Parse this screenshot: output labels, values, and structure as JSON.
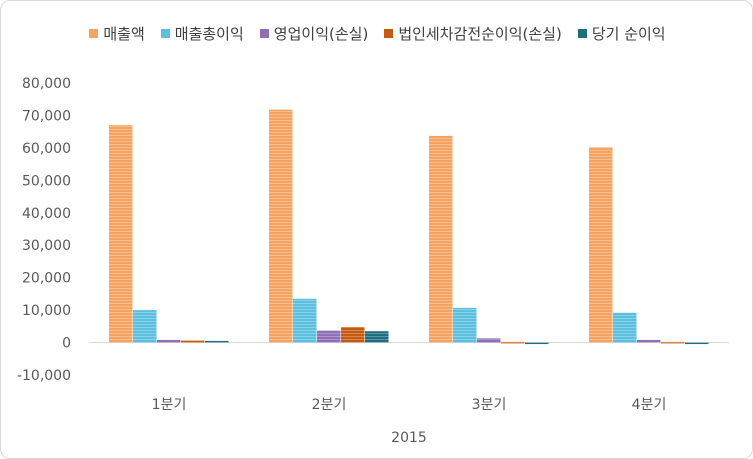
{
  "chart_data": {
    "type": "bar",
    "title": "",
    "xlabel": "2015",
    "ylabel": "",
    "categories": [
      "1분기",
      "2분기",
      "3분기",
      "4분기"
    ],
    "series": [
      {
        "name": "매출액",
        "color": "#F4A460",
        "values": [
          67000,
          71800,
          63700,
          60200
        ]
      },
      {
        "name": "매출총이익",
        "color": "#5BC0DE",
        "values": [
          10000,
          13500,
          10700,
          9200
        ]
      },
      {
        "name": "영업이익(손실)",
        "color": "#8E6FB5",
        "values": [
          800,
          3700,
          1300,
          800
        ]
      },
      {
        "name": "법인세차감전순이익(손실)",
        "color": "#C55A11",
        "values": [
          600,
          4800,
          200,
          200
        ]
      },
      {
        "name": "당기 순이익",
        "color": "#1F6E7E",
        "values": [
          500,
          3500,
          -300,
          -300
        ]
      }
    ],
    "ylim": [
      -10000,
      80000
    ],
    "ytick_labels": [
      "-10,000",
      "0",
      "10,000",
      "20,000",
      "30,000",
      "40,000",
      "50,000",
      "60,000",
      "70,000",
      "80,000"
    ],
    "grid": false,
    "legend_position": "top"
  }
}
